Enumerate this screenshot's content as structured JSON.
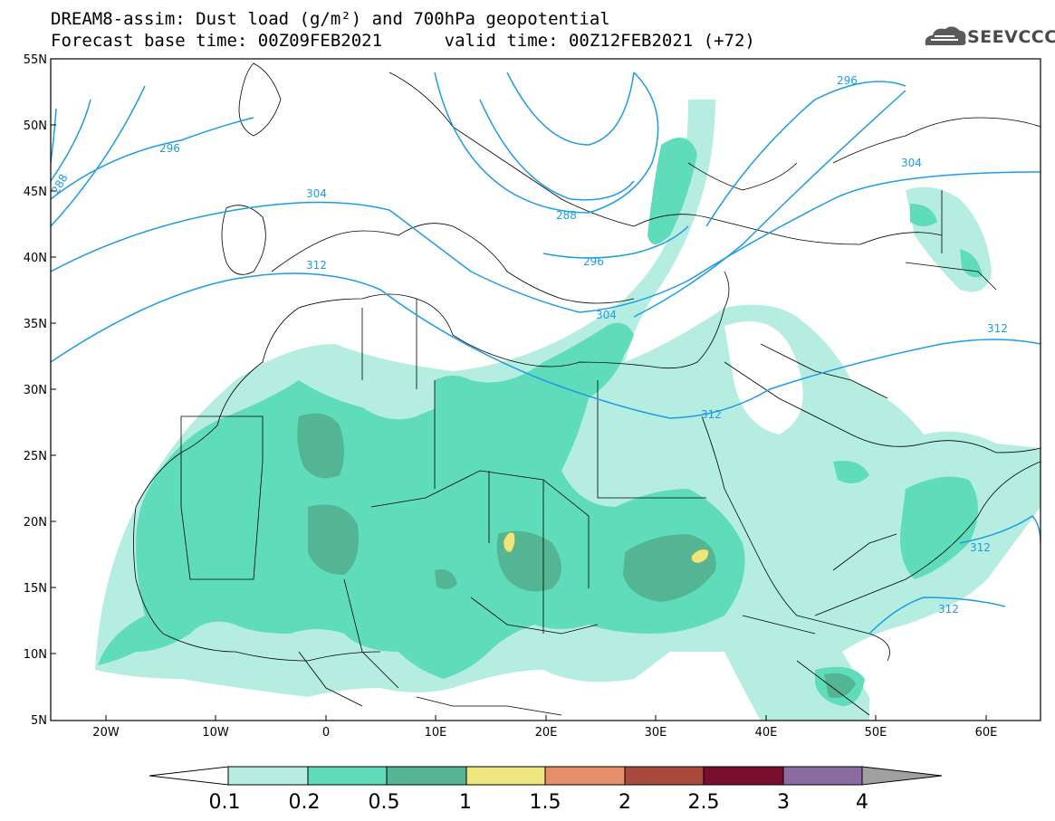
{
  "title_line1": "DREAM8-assim: Dust load (g/m²) and 700hPa geopotential",
  "title_line2": "Forecast base time: 00Z09FEB2021      valid time: 00Z12FEB2021 (+72)",
  "logo_text": "SEEVCCC",
  "lat_labels": [
    "55N",
    "50N",
    "45N",
    "40N",
    "35N",
    "30N",
    "25N",
    "20N",
    "15N",
    "10N",
    "5N"
  ],
  "lon_labels": [
    "20W",
    "10W",
    "0",
    "10E",
    "20E",
    "30E",
    "40E",
    "50E",
    "60E"
  ],
  "contour_labels": [
    "296",
    "288",
    "304",
    "312",
    "288",
    "296",
    "304",
    "312",
    "296",
    "304",
    "312",
    "312",
    "312"
  ],
  "colorbar": {
    "ticks": [
      "0.1",
      "0.2",
      "0.5",
      "1",
      "1.5",
      "2",
      "2.5",
      "3",
      "4"
    ],
    "colors": [
      "#ffffff",
      "#b5ede0",
      "#5fdcb9",
      "#53b594",
      "#ede57d",
      "#e88e69",
      "#aa4a3e",
      "#7a0e2e",
      "#8b6ca0",
      "#a0a0a0"
    ]
  },
  "colors": {
    "dust_01": "#b5ede0",
    "dust_02": "#5fdcb9",
    "dust_05": "#53b594",
    "dust_1": "#ede57d",
    "geopotential": "#1e9be6"
  }
}
